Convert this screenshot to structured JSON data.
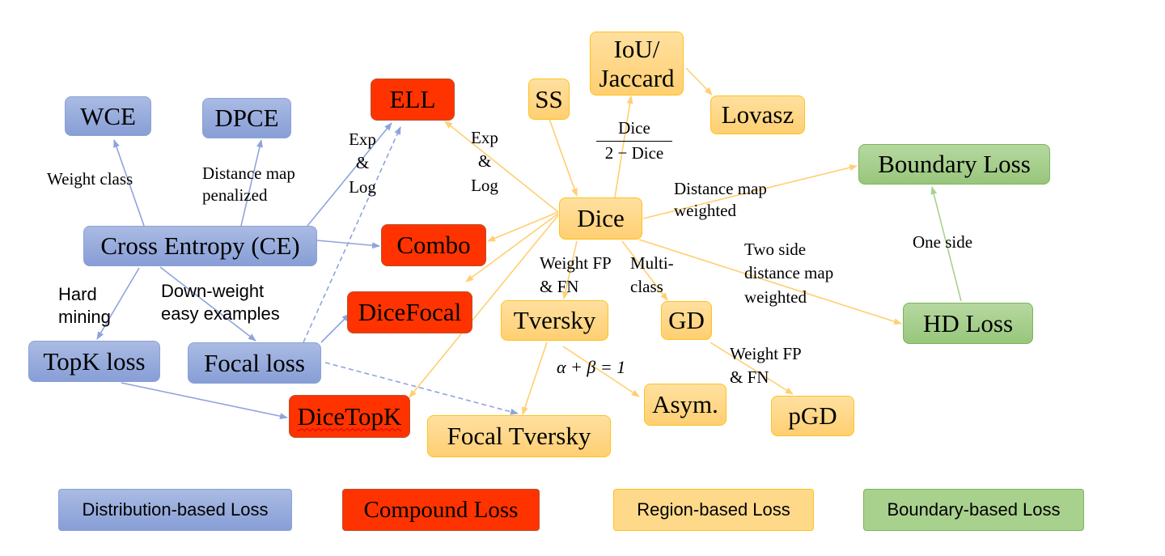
{
  "colors": {
    "distribution": "#8ea4dc",
    "compound": "#ff3300",
    "region": "#ffd27f",
    "boundary": "#a9d18e"
  },
  "nodes": {
    "wce": "WCE",
    "dpce": "DPCE",
    "ell": "ELL",
    "ss": "SS",
    "iou": "IoU/ Jaccard",
    "lovasz": "Lovasz",
    "boundary_loss": "Boundary Loss",
    "ce": "Cross Entropy (CE)",
    "combo": "Combo",
    "dice": "Dice",
    "dicefocal": "DiceFocal",
    "tversky": "Tversky",
    "gd": "GD",
    "hd_loss": "HD Loss",
    "topk": "TopK loss",
    "focal": "Focal loss",
    "dicetopk": "DiceTopK",
    "focal_tversky": "Focal Tversky",
    "asym": "Asym.",
    "pgd": "pGD"
  },
  "edge_labels": {
    "weight_class": "Weight class",
    "distance_map_penalized": "Distance map penalized",
    "exp_log_ce": "Exp & Log",
    "exp_log_dice": "Exp & Log",
    "hard_mining": "Hard mining",
    "down_weight": "Down-weight easy examples",
    "dice_frac_num": "Dice",
    "dice_frac_den": "2 − Dice",
    "distance_map_weighted": "Distance map weighted",
    "two_side": "Two side distance map weighted",
    "one_side": "One side",
    "weight_fp_fn_tversky": "Weight FP & FN",
    "multi_class": "Multi-class",
    "alpha_beta": "α + β = 1",
    "weight_fp_fn_gd": "Weight FP & FN"
  },
  "legend": {
    "distribution": "Distribution-based Loss",
    "compound": "Compound Loss",
    "region": "Region-based Loss",
    "boundary": "Boundary-based Loss"
  }
}
